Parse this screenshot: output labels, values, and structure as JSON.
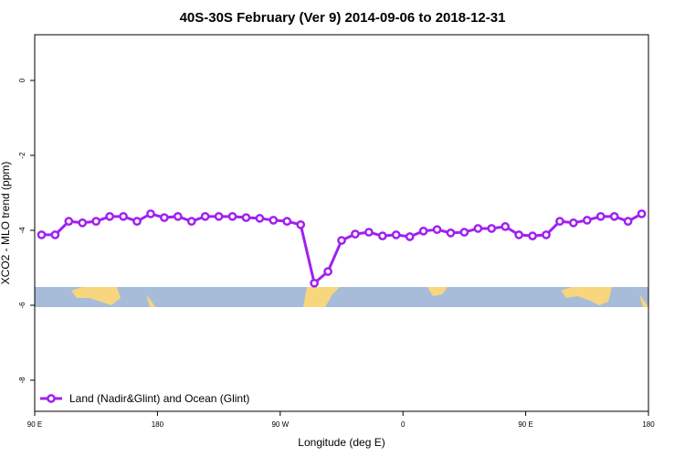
{
  "chart_data": {
    "type": "line",
    "title": "40S-30S February (Ver 9)   2014-09-06 to 2018-12-31",
    "x_label": "Longitude (deg E)",
    "y_label": "XCO2 - MLO trend (ppm)",
    "xlim": [
      90,
      540
    ],
    "ylim": [
      -8.83,
      1.22
    ],
    "xticks": [
      {
        "value": 90,
        "label": "90 E"
      },
      180,
      {
        "value": 270,
        "label": "90 W"
      },
      {
        "value": 360,
        "label": "0"
      },
      {
        "value": 450,
        "label": "90 E"
      },
      {
        "value": 540,
        "label": "180"
      }
    ],
    "yticks": [
      0,
      -2,
      -4,
      -6,
      -8
    ],
    "legend": "bottom-left",
    "x": [
      95,
      105,
      115,
      125,
      135,
      145,
      155,
      165,
      175,
      185,
      195,
      205,
      215,
      225,
      235,
      245,
      255,
      265,
      275,
      285,
      295,
      305,
      315,
      325,
      335,
      345,
      355,
      365,
      375,
      385,
      395,
      405,
      415,
      425,
      435,
      445,
      455,
      465,
      475,
      485,
      495,
      505,
      515,
      525,
      535
    ],
    "series": [
      {
        "name": "Land (Nadir&Glint) and Ocean (Glint)",
        "color": "#a020f0",
        "values": [
          -4.12,
          -4.12,
          -3.76,
          -3.8,
          -3.76,
          -3.63,
          -3.63,
          -3.76,
          -3.56,
          -3.66,
          -3.63,
          -3.76,
          -3.63,
          -3.63,
          -3.63,
          -3.66,
          -3.68,
          -3.73,
          -3.76,
          -3.85,
          -5.41,
          -5.1,
          -4.27,
          -4.1,
          -4.05,
          -4.15,
          -4.12,
          -4.17,
          -4.02,
          -3.98,
          -4.07,
          -4.05,
          -3.95,
          -3.95,
          -3.9,
          -4.12,
          -4.15,
          -4.12,
          -3.76,
          -3.8,
          -3.73,
          -3.63,
          -3.63,
          -3.76,
          -3.56
        ]
      }
    ]
  }
}
